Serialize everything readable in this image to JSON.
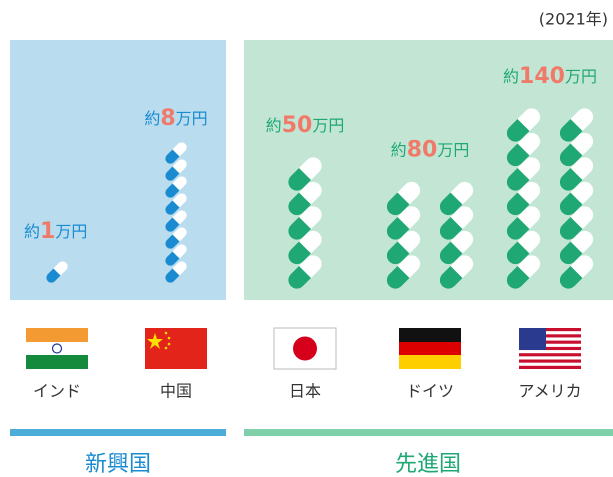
{
  "year_note": "(2021年)",
  "label_prefix": "約",
  "label_unit": "万円",
  "groups": [
    {
      "name": "新興国",
      "pill_value": 1,
      "countries": [
        {
          "name": "インド",
          "value": 1
        },
        {
          "name": "中国",
          "value": 8
        }
      ]
    },
    {
      "name": "先進国",
      "pill_value": 10,
      "countries": [
        {
          "name": "日本",
          "value": 50
        },
        {
          "name": "ドイツ",
          "value": 80
        },
        {
          "name": "アメリカ",
          "value": 140
        }
      ]
    }
  ]
}
